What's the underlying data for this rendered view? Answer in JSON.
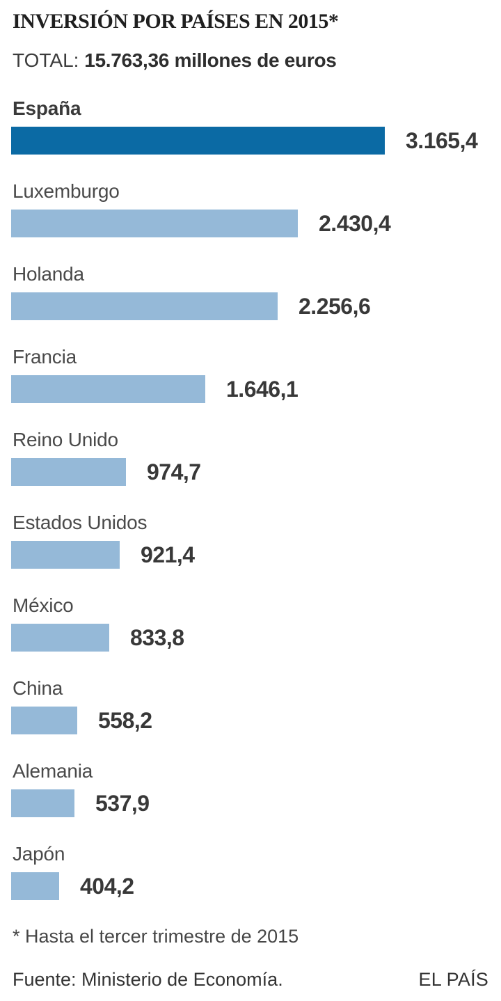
{
  "header": {
    "title": "INVERSIÓN POR PAÍSES EN 2015*",
    "total_label": "TOTAL:",
    "total_value": "15.763,36 millones de euros"
  },
  "chart_data": {
    "type": "bar",
    "orientation": "horizontal",
    "title": "INVERSIÓN POR PAÍSES EN 2015*",
    "subtitle": "TOTAL: 15.763,36 millones de euros",
    "unit": "millones de euros",
    "categories": [
      "España",
      "Luxemburgo",
      "Holanda",
      "Francia",
      "Reino Unido",
      "Estados Unidos",
      "México",
      "China",
      "Alemania",
      "Japón"
    ],
    "values": [
      3165.4,
      2430.4,
      2256.6,
      1646.1,
      974.7,
      921.4,
      833.8,
      558.2,
      537.9,
      404.2
    ],
    "value_labels": [
      "3.165,4",
      "2.430,4",
      "2.256,6",
      "1.646,1",
      "974,7",
      "921,4",
      "833,8",
      "558,2",
      "537,9",
      "404,2"
    ],
    "xlim": [
      0,
      3165.4
    ],
    "highlight_index": 0,
    "highlight_color": "#0b6aa4",
    "bar_color": "#95b9d8",
    "grid": "off",
    "legend": "none"
  },
  "footer": {
    "footnote": "* Hasta el tercer trimestre de 2015",
    "source": "Fuente: Ministerio de Economía.",
    "brand": "EL PAÍS"
  }
}
